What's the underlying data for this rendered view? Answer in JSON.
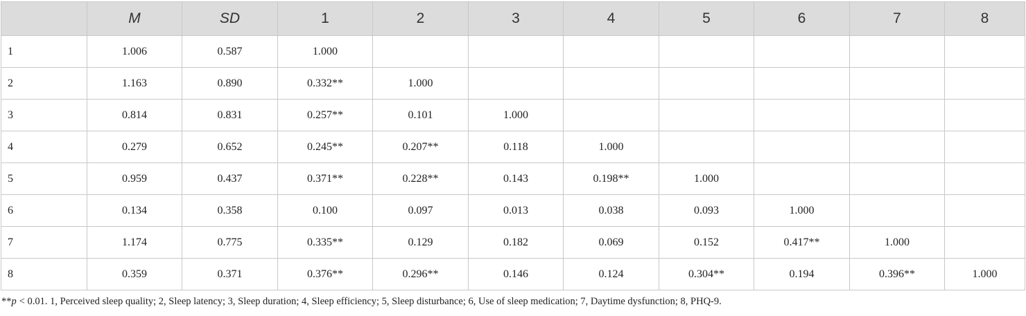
{
  "table": {
    "header": [
      "M",
      "SD",
      "1",
      "2",
      "3",
      "4",
      "5",
      "6",
      "7",
      "8"
    ],
    "italic_headers": [
      "M",
      "SD"
    ],
    "rows": [
      {
        "label": "1",
        "cells": [
          "1.006",
          "0.587",
          "1.000"
        ]
      },
      {
        "label": "2",
        "cells": [
          "1.163",
          "0.890",
          "0.332**",
          "1.000"
        ]
      },
      {
        "label": "3",
        "cells": [
          "0.814",
          "0.831",
          "0.257**",
          "0.101",
          "1.000"
        ]
      },
      {
        "label": "4",
        "cells": [
          "0.279",
          "0.652",
          "0.245**",
          "0.207**",
          "0.118",
          "1.000"
        ]
      },
      {
        "label": "5",
        "cells": [
          "0.959",
          "0.437",
          "0.371**",
          "0.228**",
          "0.143",
          "0.198**",
          "1.000"
        ]
      },
      {
        "label": "6",
        "cells": [
          "0.134",
          "0.358",
          "0.100",
          "0.097",
          "0.013",
          "0.038",
          "0.093",
          "1.000"
        ]
      },
      {
        "label": "7",
        "cells": [
          "1.174",
          "0.775",
          "0.335**",
          "0.129",
          "0.182",
          "0.069",
          "0.152",
          "0.417**",
          "1.000"
        ]
      },
      {
        "label": "8",
        "cells": [
          "0.359",
          "0.371",
          "0.376**",
          "0.296**",
          "0.146",
          "0.124",
          "0.304**",
          "0.194",
          "0.396**",
          "1.000"
        ]
      }
    ]
  },
  "footnote": {
    "mark": "**",
    "symbol": "p",
    "text": "< 0.01. 1, Perceived sleep quality; 2, Sleep latency; 3, Sleep duration; 4, Sleep efficiency; 5, Sleep disturbance; 6, Use of sleep medication; 7, Daytime dysfunction; 8, PHQ-9."
  }
}
